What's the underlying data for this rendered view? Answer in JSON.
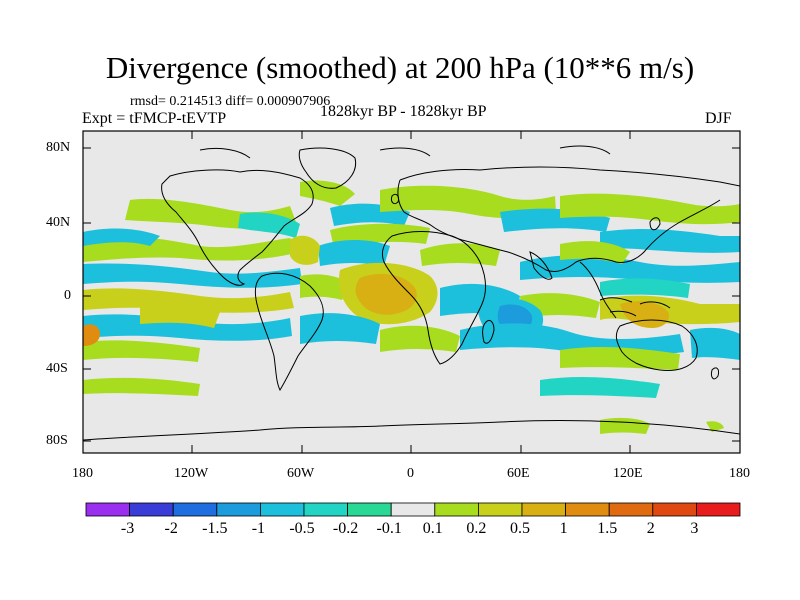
{
  "title": "Divergence (smoothed) at 200 hPa (10**6 m/s)",
  "stats": "rmsd= 0.214513 diff= 0.000907906",
  "experiment": "Expt = tFMCP-tEVTP",
  "period": "1828kyr BP - 1828kyr BP",
  "season": "DJF",
  "y_axis_labels": [
    "80N",
    "40N",
    "0",
    "40S",
    "80S"
  ],
  "x_axis_labels": [
    "180",
    "120W",
    "60W",
    "0",
    "60E",
    "120E",
    "180"
  ],
  "colorbar": {
    "labels": [
      "-3",
      "-2",
      "-1.5",
      "-1",
      "-0.5",
      "-0.2",
      "-0.1",
      "0.1",
      "0.2",
      "0.5",
      "1",
      "1.5",
      "2",
      "3"
    ],
    "colors": [
      "#9a2ff0",
      "#3a3cd8",
      "#1f6ee0",
      "#1c9cdc",
      "#1cc0dc",
      "#22d4c4",
      "#2ad896",
      "#e8e8e8",
      "#a8dc1e",
      "#c8d01c",
      "#d8b014",
      "#e08c10",
      "#e06a10",
      "#e04812",
      "#e81c1c"
    ]
  },
  "colors": {
    "ocean_background": "#e8e8e8",
    "coastline": "#000000"
  }
}
